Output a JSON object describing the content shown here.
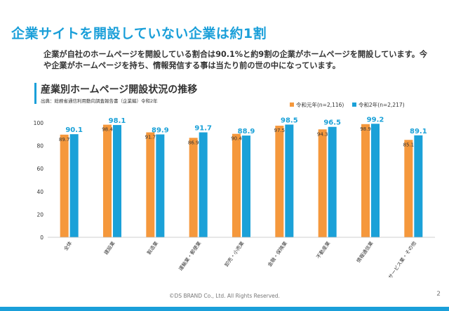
{
  "slide": {
    "title": "企業サイトを開設していない企業は約1割",
    "body": "企業が自社のホームページを開設している割合は90.1%と約9割の企業がホームページを開設しています。今や企業がホームページを持ち、情報発信する事は当たり前の世の中になっています。",
    "footer": "©DS BRAND Co., Ltd. All Rights Reserved.",
    "page_number": "2"
  },
  "colors": {
    "accent": "#1a9fd9",
    "series_1": "#f5983c",
    "series_2": "#1ba1d8"
  },
  "chart_data": {
    "type": "bar",
    "title": "産業別ホームページ開設状況の推移",
    "subtitle": "出典：総務省通信利用動向調査報告書（企業編）令和2年",
    "xlabel": "",
    "ylabel": "",
    "ylim": [
      0,
      100
    ],
    "yticks": [
      0,
      20,
      40,
      60,
      80,
      100
    ],
    "grid": false,
    "legend_position": "top-right",
    "categories": [
      "全体",
      "建設業",
      "製造業",
      "運輸業・郵便業",
      "卸売・小売業",
      "金融・保険業",
      "不動産業",
      "情報通信業",
      "サービス業・その他"
    ],
    "series": [
      {
        "name": "令和元年(n=2,116)",
        "values": [
          89.7,
          98.4,
          91.7,
          86.9,
          90.4,
          97.5,
          94.3,
          98.9,
          85.1
        ]
      },
      {
        "name": "令和2年(n=2,217)",
        "values": [
          90.1,
          98.1,
          89.9,
          91.7,
          88.9,
          98.5,
          96.5,
          99.2,
          89.1
        ]
      }
    ]
  }
}
